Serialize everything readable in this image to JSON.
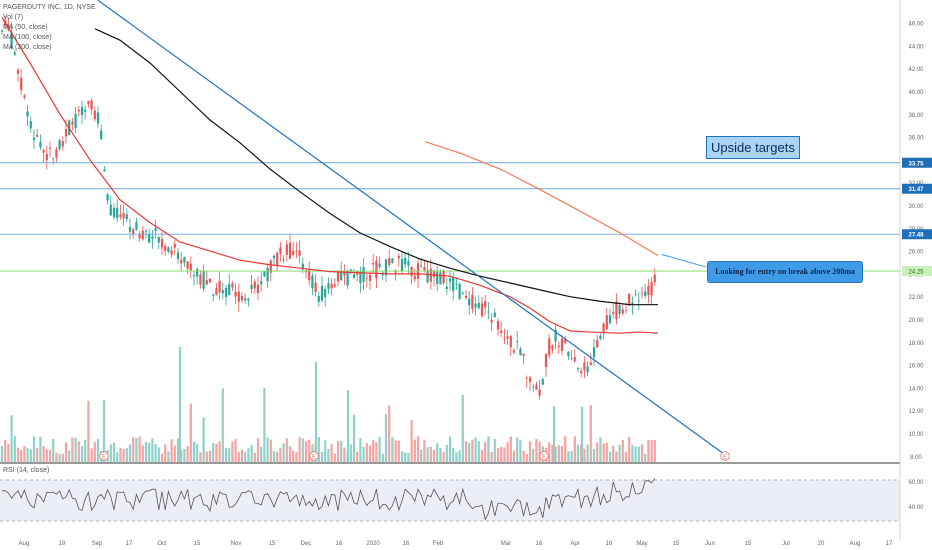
{
  "legend": {
    "title": "PAGERDUTY INC, 1D, NYSE",
    "vol": "Vol (7)",
    "ma1": "MA (50, close)",
    "ma2": "MA (100, close)",
    "ma3": "MA (200, close)"
  },
  "rsi_label": "RSI (14, close)",
  "annotations": {
    "upside_targets": "Upside targets",
    "callout": "Looking for entry on break above 200ma"
  },
  "colors": {
    "up": "#26a69a",
    "down": "#ef5350",
    "ma50": "#e53935",
    "ma100": "#111111",
    "ma200": "#f57c52",
    "trendline": "#1e73be",
    "hline": "#6fa8dc",
    "price_line": "#7ed957"
  },
  "chart_data": {
    "type": "candlestick",
    "title": "PAGERDUTY INC, 1D, NYSE",
    "ylim": [
      7.5,
      47.5
    ],
    "y_ticks": [
      "8.00",
      "10.00",
      "12.00",
      "14.00",
      "16.00",
      "18.00",
      "20.00",
      "22.00",
      "24.00",
      "26.00",
      "28.00",
      "30.00",
      "32.00",
      "34.00",
      "36.00",
      "38.00",
      "40.00",
      "42.00",
      "44.00",
      "46.00"
    ],
    "x_ticks": [
      "Aug",
      "19",
      "Sep",
      "17",
      "Oct",
      "15",
      "Nov",
      "15",
      "Dec",
      "16",
      "2020",
      "16",
      "Feb",
      "Mar",
      "16",
      "Apr",
      "16",
      "May",
      "15",
      "Jun",
      "15",
      "Jul",
      "20",
      "Aug",
      "17"
    ],
    "price_levels": [
      {
        "label": "33.75",
        "value": 33.75
      },
      {
        "label": "31.47",
        "value": 31.47
      },
      {
        "label": "27.48",
        "value": 27.48
      }
    ],
    "current_price": {
      "label": "24.25",
      "value": 24.25
    },
    "key_points": [
      {
        "date": "Aug",
        "high": 46.5,
        "low": 43.5
      },
      {
        "date": "Sep",
        "close": 39.0
      },
      {
        "date": "17",
        "close": 30.0
      },
      {
        "date": "Nov",
        "close": 22.5
      },
      {
        "date": "Dec",
        "close": 25.5
      },
      {
        "date": "2020",
        "close": 24.2
      },
      {
        "date": "Feb",
        "close": 23.5
      },
      {
        "date": "Mar",
        "close": 15.0,
        "low": 12.8
      },
      {
        "date": "Apr",
        "close": 18.8
      },
      {
        "date": "May",
        "close": 24.2
      }
    ],
    "moving_averages": [
      {
        "name": "MA (50, close)",
        "start": 46.5,
        "end": 18.8
      },
      {
        "name": "MA (100, close)",
        "start": 45.5,
        "end": 21.3
      },
      {
        "name": "MA (200, close)",
        "start": 35.5,
        "end": 25.5
      }
    ],
    "rsi": {
      "name": "RSI (14, close)",
      "ticks": [
        "40.00",
        "60.00"
      ],
      "upper": 70,
      "lower": 30,
      "last": 74
    }
  }
}
